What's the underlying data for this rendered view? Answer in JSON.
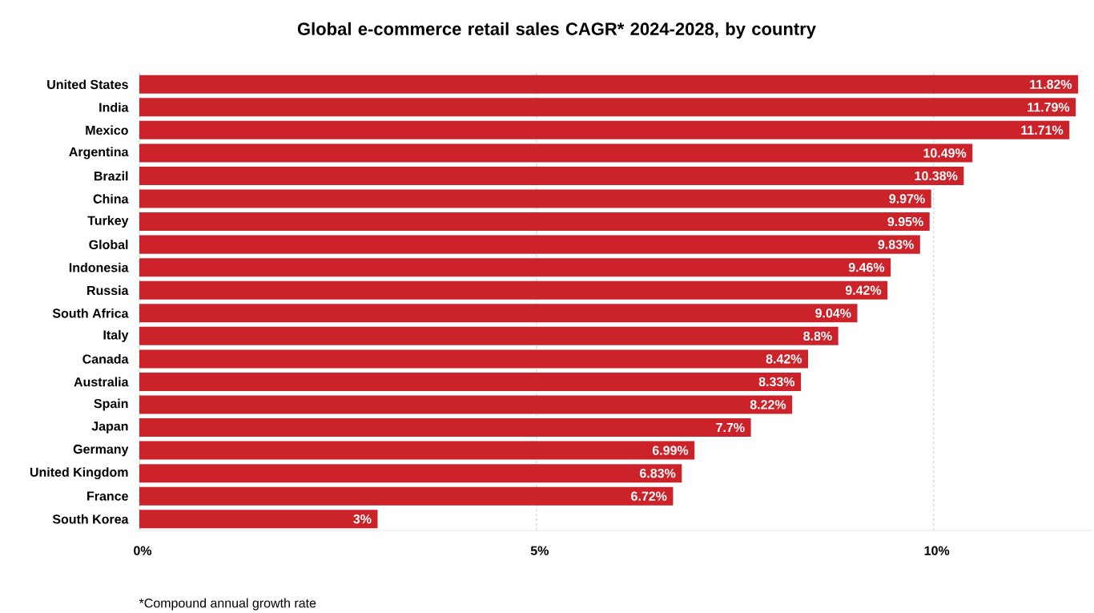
{
  "chart_data": {
    "type": "bar",
    "orientation": "horizontal",
    "title": "Global e-commerce retail sales CAGR* 2024-2028, by country",
    "categories": [
      "United States",
      "India",
      "Mexico",
      "Argentina",
      "Brazil",
      "China",
      "Turkey",
      "Global",
      "Indonesia",
      "Russia",
      "South Africa",
      "Italy",
      "Canada",
      "Australia",
      "Spain",
      "Japan",
      "Germany",
      "United Kingdom",
      "France",
      "South Korea"
    ],
    "values": [
      11.82,
      11.79,
      11.71,
      10.49,
      10.38,
      9.97,
      9.95,
      9.83,
      9.46,
      9.42,
      9.04,
      8.8,
      8.42,
      8.33,
      8.22,
      7.7,
      6.99,
      6.83,
      6.72,
      3
    ],
    "value_labels": [
      "11.82%",
      "11.79%",
      "11.71%",
      "10.49%",
      "10.38%",
      "9.97%",
      "9.95%",
      "9.83%",
      "9.46%",
      "9.42%",
      "9.04%",
      "8.8%",
      "8.42%",
      "8.33%",
      "8.22%",
      "7.7%",
      "6.99%",
      "6.83%",
      "6.72%",
      "3%"
    ],
    "color": "#cc2229",
    "xticks": [
      {
        "value": 0,
        "label": "0%"
      },
      {
        "value": 5,
        "label": "5%"
      },
      {
        "value": 10,
        "label": "10%"
      }
    ],
    "xlim": [
      0,
      12
    ],
    "grid": "x",
    "annotations": [
      "*Compound annual growth rate"
    ]
  }
}
